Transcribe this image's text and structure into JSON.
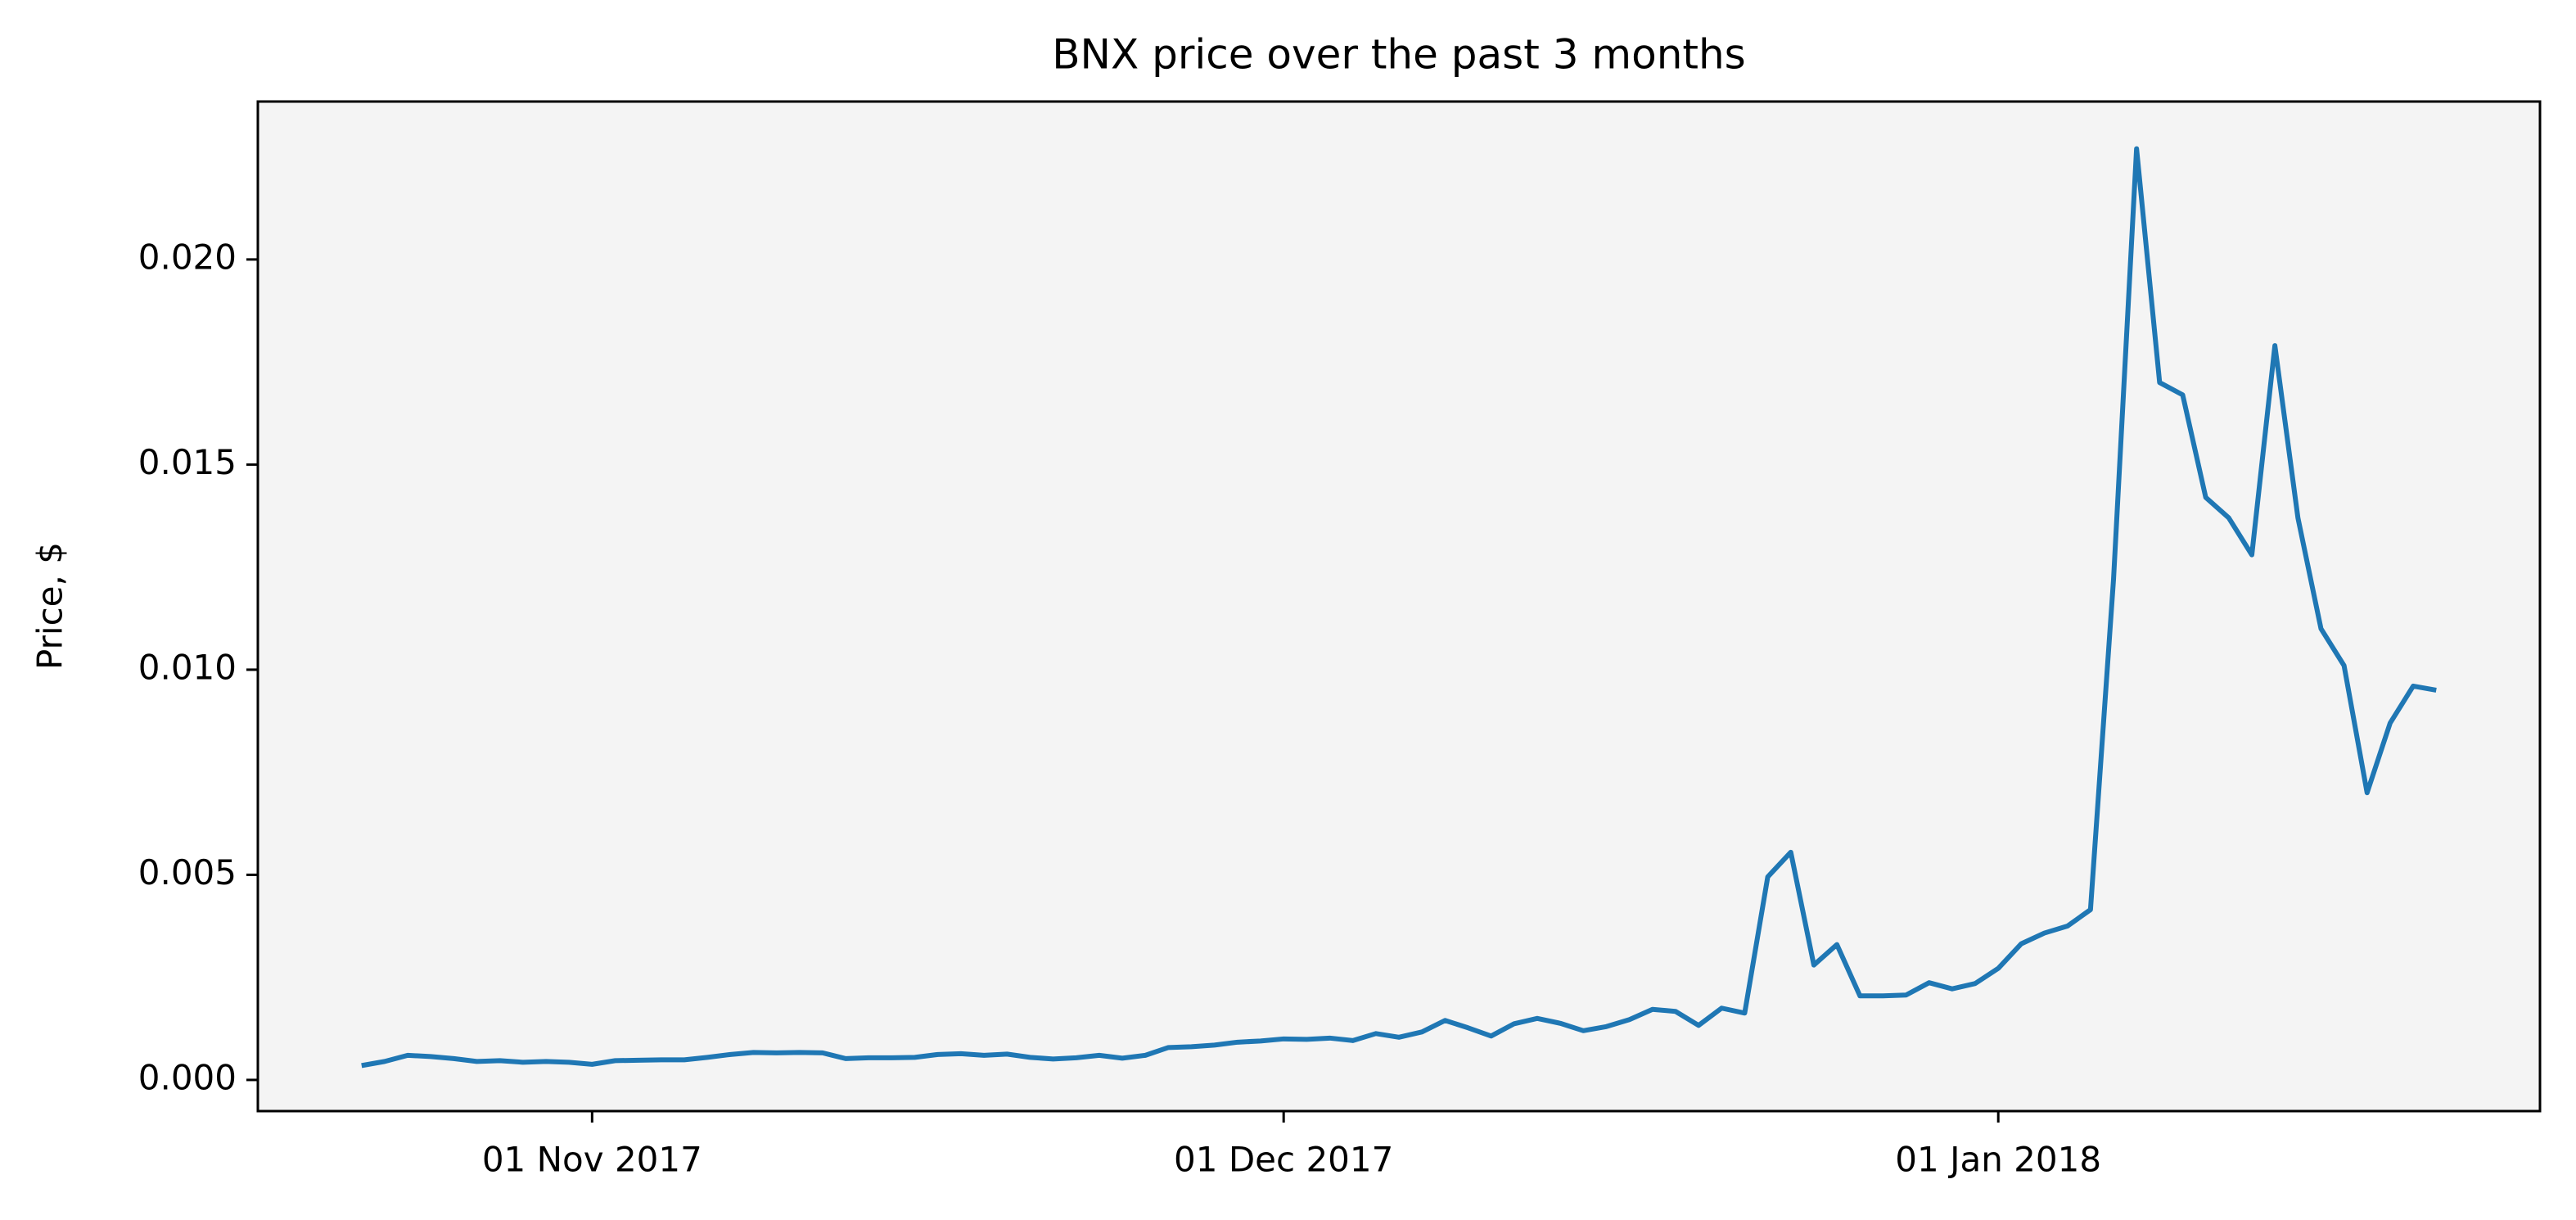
{
  "chart_data": {
    "type": "line",
    "title": "BNX price over the past 3 months",
    "ylabel": "Price, $",
    "x": [
      "2017-10-22",
      "2017-10-23",
      "2017-10-24",
      "2017-10-25",
      "2017-10-26",
      "2017-10-27",
      "2017-10-28",
      "2017-10-29",
      "2017-10-30",
      "2017-10-31",
      "2017-11-01",
      "2017-11-02",
      "2017-11-03",
      "2017-11-04",
      "2017-11-05",
      "2017-11-06",
      "2017-11-07",
      "2017-11-08",
      "2017-11-09",
      "2017-11-10",
      "2017-11-11",
      "2017-11-12",
      "2017-11-13",
      "2017-11-14",
      "2017-11-15",
      "2017-11-16",
      "2017-11-17",
      "2017-11-18",
      "2017-11-19",
      "2017-11-20",
      "2017-11-21",
      "2017-11-22",
      "2017-11-23",
      "2017-11-24",
      "2017-11-25",
      "2017-11-26",
      "2017-11-27",
      "2017-11-28",
      "2017-11-29",
      "2017-11-30",
      "2017-12-01",
      "2017-12-02",
      "2017-12-03",
      "2017-12-04",
      "2017-12-05",
      "2017-12-06",
      "2017-12-07",
      "2017-12-08",
      "2017-12-09",
      "2017-12-10",
      "2017-12-11",
      "2017-12-12",
      "2017-12-13",
      "2017-12-14",
      "2017-12-15",
      "2017-12-16",
      "2017-12-17",
      "2017-12-18",
      "2017-12-19",
      "2017-12-20",
      "2017-12-21",
      "2017-12-22",
      "2017-12-23",
      "2017-12-24",
      "2017-12-25",
      "2017-12-26",
      "2017-12-27",
      "2017-12-28",
      "2017-12-29",
      "2017-12-30",
      "2017-12-31",
      "2018-01-01",
      "2018-01-02",
      "2018-01-03",
      "2018-01-04",
      "2018-01-05",
      "2018-01-06",
      "2018-01-07",
      "2018-01-08",
      "2018-01-09",
      "2018-01-10",
      "2018-01-11",
      "2018-01-12",
      "2018-01-13",
      "2018-01-14",
      "2018-01-15",
      "2018-01-16",
      "2018-01-17",
      "2018-01-18",
      "2018-01-19",
      "2018-01-20"
    ],
    "values": [
      0.00035,
      0.00045,
      0.0006,
      0.00057,
      0.00052,
      0.00045,
      0.00047,
      0.00043,
      0.00045,
      0.00043,
      0.00038,
      0.00047,
      0.00048,
      0.00049,
      0.00049,
      0.00055,
      0.00062,
      0.00067,
      0.00066,
      0.00067,
      0.00066,
      0.00052,
      0.00054,
      0.00054,
      0.00055,
      0.00062,
      0.00064,
      0.0006,
      0.00063,
      0.00055,
      0.00051,
      0.00054,
      0.0006,
      0.00053,
      0.0006,
      0.00079,
      0.00081,
      0.00085,
      0.00092,
      0.00095,
      0.001,
      0.00099,
      0.00102,
      0.00096,
      0.00113,
      0.00104,
      0.00117,
      0.00145,
      0.00127,
      0.00107,
      0.00137,
      0.0015,
      0.00138,
      0.0012,
      0.0013,
      0.00147,
      0.00172,
      0.00167,
      0.00133,
      0.00175,
      0.00163,
      0.00495,
      0.00555,
      0.0028,
      0.0033,
      0.00205,
      0.00205,
      0.00207,
      0.00237,
      0.00222,
      0.00235,
      0.00272,
      0.00332,
      0.00358,
      0.00375,
      0.00415,
      0.0122,
      0.0227,
      0.017,
      0.0167,
      0.0142,
      0.0137,
      0.0128,
      0.0179,
      0.0137,
      0.011,
      0.0101,
      0.007,
      0.0087,
      0.0096,
      0.0095
    ],
    "color": "#1f77b4",
    "background": "#f4f4f4",
    "xlim": [
      "2017-10-17T12:00:00Z",
      "2018-01-24T12:00:00Z"
    ],
    "xticks": [
      {
        "value": "2017-11-01",
        "label": "01 Nov 2017"
      },
      {
        "value": "2017-12-01",
        "label": "01 Dec 2017"
      },
      {
        "value": "2018-01-01",
        "label": "01 Jan 2018"
      }
    ],
    "ylim": [
      -0.00076,
      0.02385
    ],
    "yticks": [
      {
        "value": 0,
        "label": "0.000"
      },
      {
        "value": 0.005,
        "label": "0.005"
      },
      {
        "value": 0.01,
        "label": "0.010"
      },
      {
        "value": 0.015,
        "label": "0.015"
      },
      {
        "value": 0.02,
        "label": "0.020"
      }
    ]
  }
}
